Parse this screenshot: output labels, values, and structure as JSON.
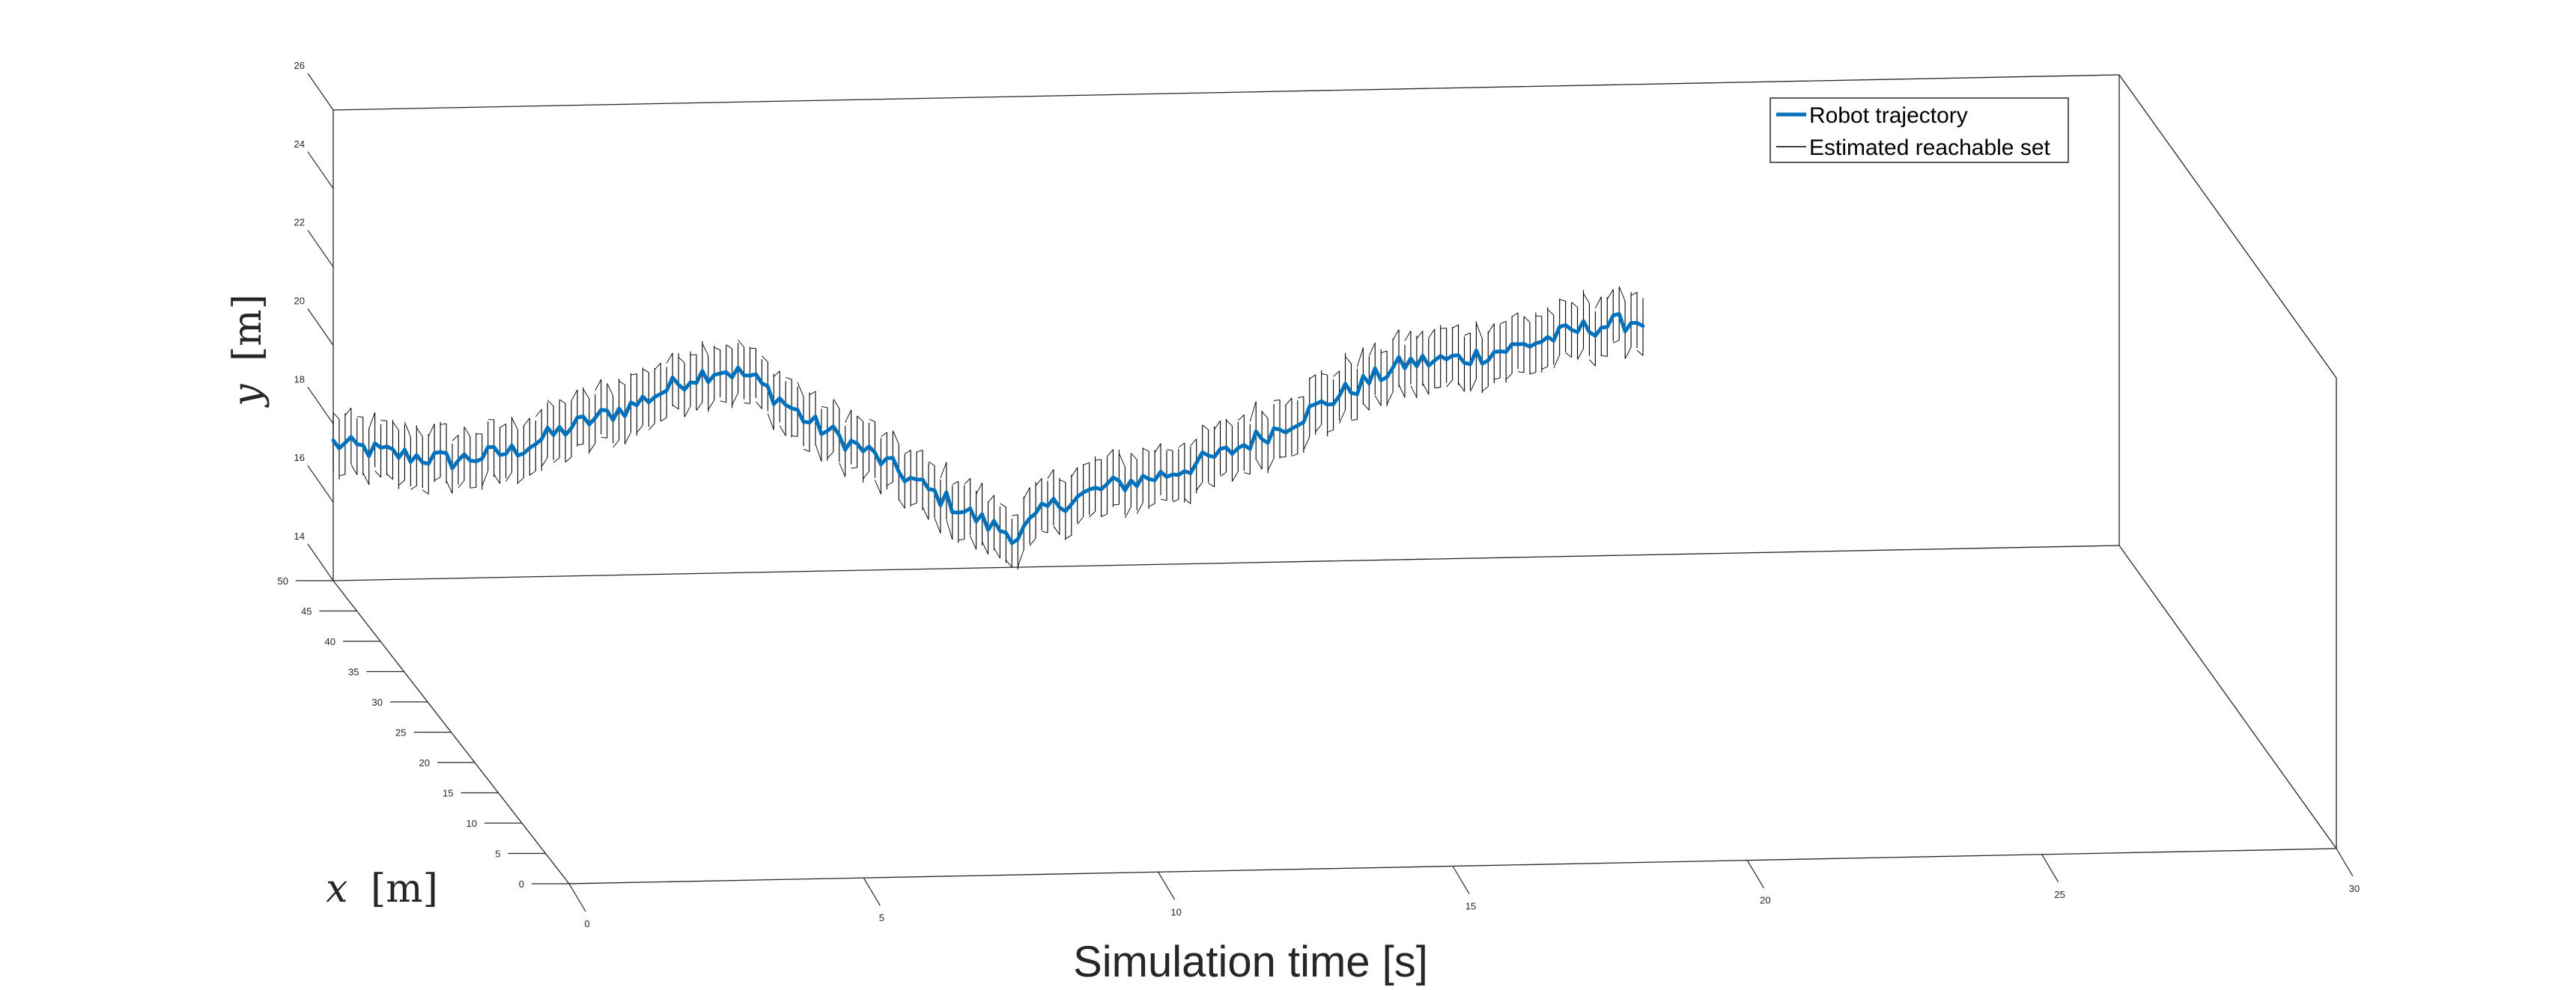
{
  "chart_data": {
    "type": "line",
    "projection": "3d",
    "xlabel": "Simulation time [s]",
    "ylabel_var": "x",
    "ylabel_unit": "[m]",
    "zlabel_var": "y",
    "zlabel_unit": "[m]",
    "xlim": [
      0,
      30
    ],
    "ylim": [
      0,
      50
    ],
    "zlim": [
      14,
      26
    ],
    "x_ticks": [
      "0",
      "5",
      "10",
      "15",
      "20",
      "25",
      "30"
    ],
    "y_ticks": [
      "0",
      "5",
      "10",
      "15",
      "20",
      "25",
      "30",
      "35",
      "40",
      "45",
      "50"
    ],
    "z_ticks": [
      "14",
      "16",
      "18",
      "20",
      "22",
      "24",
      "26"
    ],
    "legend_position": "top-right",
    "colors": {
      "trajectory": "#0072BD",
      "reachable": "#000000",
      "axes": "#262626"
    },
    "series": [
      {
        "name": "Robot trajectory",
        "kind": "line",
        "t": [
          0,
          1,
          2,
          3,
          4,
          5,
          6,
          6.5,
          7,
          8,
          9,
          10,
          11,
          11.5,
          12,
          13,
          14,
          15,
          16,
          17,
          18,
          19,
          20,
          21,
          22
        ],
        "y": [
          17.5,
          17.2,
          17.0,
          17.2,
          17.8,
          18.3,
          19.0,
          19.2,
          19.0,
          17.8,
          17.0,
          16.0,
          15.1,
          14.8,
          15.5,
          16.0,
          16.3,
          16.8,
          17.5,
          18.3,
          19.0,
          19.1,
          19.4,
          19.8,
          20.0
        ]
      },
      {
        "name": "Estimated reachable set",
        "kind": "intervals",
        "step": 0.1,
        "half_width": 0.7
      }
    ]
  }
}
